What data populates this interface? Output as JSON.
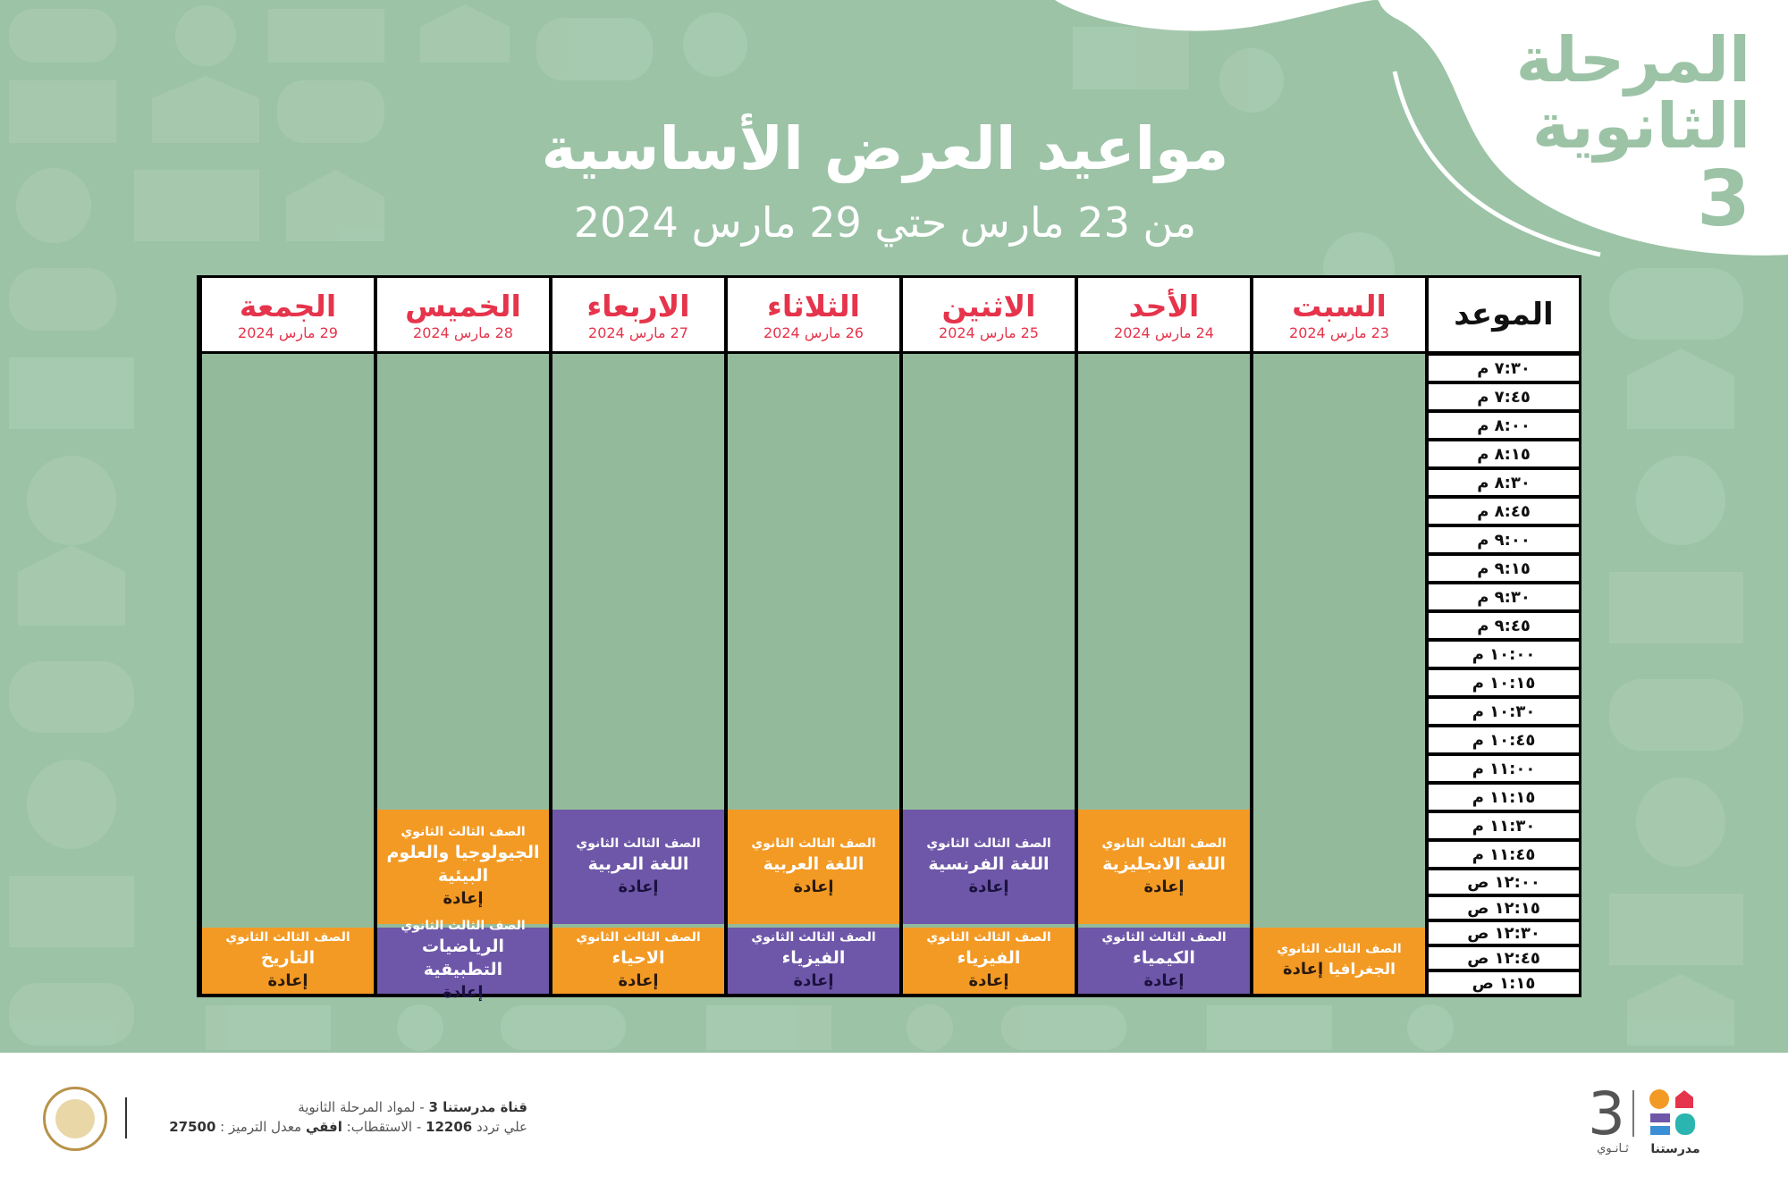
{
  "header": {
    "stage_line1": "المرحلة",
    "stage_line2": "الثانوية",
    "stage_number": "3",
    "title": "مواعيد العرض الأساسية",
    "subtitle": "من 23  مارس  حتي  29 مارس  2024"
  },
  "table": {
    "time_header": "الموعد",
    "days": [
      {
        "name": "السبت",
        "date": "23 مارس 2024"
      },
      {
        "name": "الأحد",
        "date": "24 مارس 2024"
      },
      {
        "name": "الاثنين",
        "date": "25 مارس 2024"
      },
      {
        "name": "الثلاثاء",
        "date": "26 مارس 2024"
      },
      {
        "name": "الاربعاء",
        "date": "27 مارس 2024"
      },
      {
        "name": "الخميس",
        "date": "28 مارس 2024"
      },
      {
        "name": "الجمعة",
        "date": "29 مارس 2024"
      }
    ],
    "times": [
      "٧:٣٠ م",
      "٧:٤٥ م",
      "٨:٠٠ م",
      "٨:١٥ م",
      "٨:٣٠ م",
      "٨:٤٥ م",
      "٩:٠٠ م",
      "٩:١٥ م",
      "٩:٣٠ م",
      "٩:٤٥ م",
      "١٠:٠٠ م",
      "١٠:١٥ م",
      "١٠:٣٠ م",
      "١٠:٤٥ م",
      "١١:٠٠ م",
      "١١:١٥ م",
      "١١:٣٠ م",
      "١١:٤٥ م",
      "١٢:٠٠ ص",
      "١٢:١٥ ص",
      "١٢:٣٠ ص",
      "١٢:٤٥ ص",
      "١:١٥ ص"
    ],
    "grade": "الصف الثالث الثانوي",
    "repeat": "إعادة",
    "blocks": {
      "sun_upper": {
        "subject": "اللغة الانجليزية",
        "color": "#f39a24"
      },
      "mon_upper": {
        "subject": "اللغة الفرنسية",
        "color": "#6e57a8"
      },
      "tue_upper": {
        "subject": "اللغة العربية",
        "color": "#f39a24"
      },
      "wed_upper": {
        "subject": "اللغة العربية",
        "color": "#6e57a8"
      },
      "thu_upper": {
        "subject": "الجيولوجيا والعلوم البيئية",
        "color": "#f39a24"
      },
      "sat_lower": {
        "subject": "الجغرافيا",
        "color": "#f39a24"
      },
      "sun_lower": {
        "subject": "الكيمياء",
        "color": "#6e57a8"
      },
      "mon_lower": {
        "subject": "الفيزياء",
        "color": "#f39a24"
      },
      "tue_lower": {
        "subject": "الفيزياء",
        "color": "#6e57a8"
      },
      "wed_lower": {
        "subject": "الاحياء",
        "color": "#f39a24"
      },
      "thu_lower": {
        "subject": "الرياضيات التطبيقية",
        "color": "#6e57a8"
      },
      "fri_lower": {
        "subject": "التاريخ",
        "color": "#f39a24"
      }
    }
  },
  "footer": {
    "channel_name": "قناة مدرستنا 3",
    "channel_desc": " -  لمواد المرحلة الثانوية",
    "freq_prefix": "علي تردد ",
    "frequency": "12206",
    "pol_prefix": " - الاستقطاب: ",
    "polarization": "افقي",
    "rate_prefix": " معدل الترميز : ",
    "symbol_rate": "27500",
    "logo_number": "3",
    "logo_caption_left": "ثـانـوي",
    "logo_caption_right": "مدرستنا"
  }
}
